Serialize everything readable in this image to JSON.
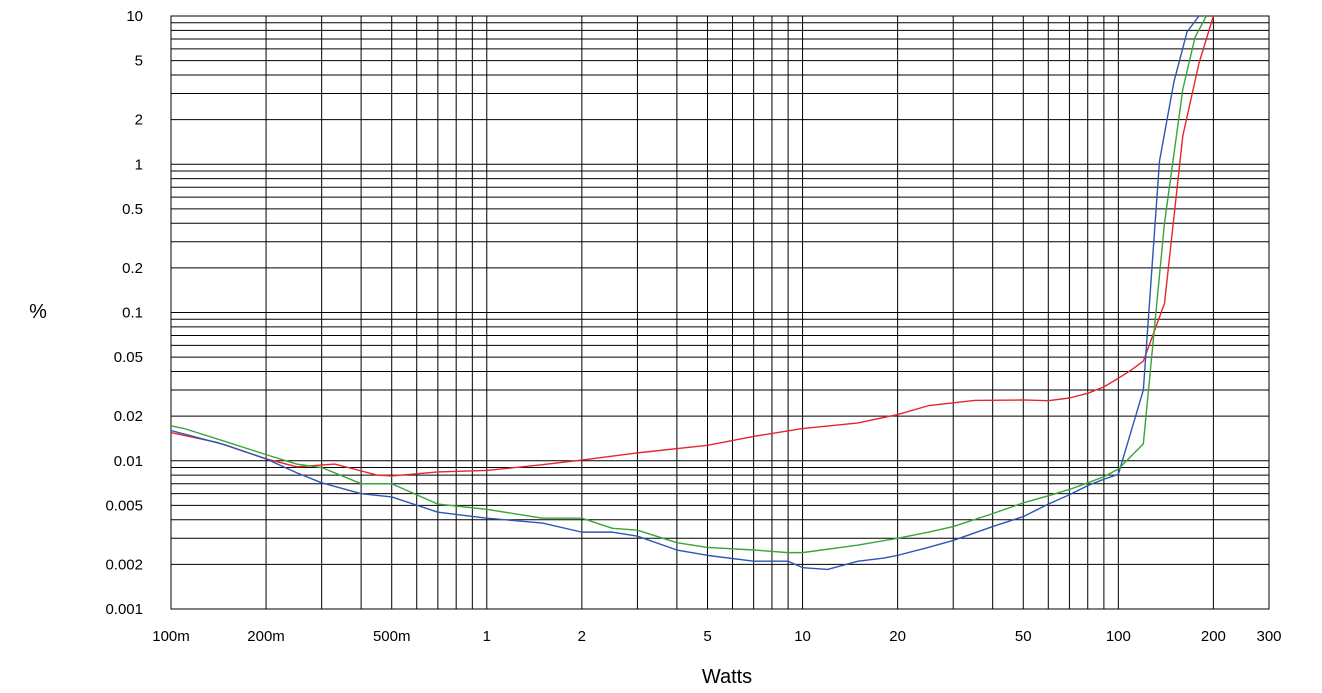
{
  "chart_data": {
    "type": "line",
    "xlabel": "Watts",
    "ylabel": "%",
    "x_scale": "log",
    "y_scale": "log",
    "xlim": [
      0.1,
      300
    ],
    "ylim": [
      0.001,
      10
    ],
    "grid": true,
    "x_ticks": [
      {
        "value": 0.1,
        "label": "100m"
      },
      {
        "value": 0.2,
        "label": "200m"
      },
      {
        "value": 0.5,
        "label": "500m"
      },
      {
        "value": 1,
        "label": "1"
      },
      {
        "value": 2,
        "label": "2"
      },
      {
        "value": 5,
        "label": "5"
      },
      {
        "value": 10,
        "label": "10"
      },
      {
        "value": 20,
        "label": "20"
      },
      {
        "value": 50,
        "label": "50"
      },
      {
        "value": 100,
        "label": "100"
      },
      {
        "value": 200,
        "label": "200"
      },
      {
        "value": 300,
        "label": "300"
      }
    ],
    "y_ticks": [
      {
        "value": 0.001,
        "label": "0.001"
      },
      {
        "value": 0.002,
        "label": "0.002"
      },
      {
        "value": 0.005,
        "label": "0.005"
      },
      {
        "value": 0.01,
        "label": "0.01"
      },
      {
        "value": 0.02,
        "label": "0.02"
      },
      {
        "value": 0.05,
        "label": "0.05"
      },
      {
        "value": 0.1,
        "label": "0.1"
      },
      {
        "value": 0.2,
        "label": "0.2"
      },
      {
        "value": 0.5,
        "label": "0.5"
      },
      {
        "value": 1,
        "label": "1"
      },
      {
        "value": 2,
        "label": "2"
      },
      {
        "value": 5,
        "label": "5"
      },
      {
        "value": 10,
        "label": "10"
      }
    ],
    "series": [
      {
        "color": "#e8252a",
        "x": [
          0.1,
          0.14,
          0.2,
          0.25,
          0.33,
          0.45,
          0.5,
          0.7,
          1,
          1.5,
          2,
          3,
          5,
          7,
          10,
          15,
          20,
          25,
          35,
          50,
          60,
          70,
          80,
          90,
          100,
          110,
          120,
          140,
          160,
          180,
          200
        ],
        "y": [
          0.0155,
          0.0133,
          0.0103,
          0.0091,
          0.0095,
          0.008,
          0.0079,
          0.0084,
          0.0086,
          0.0094,
          0.0101,
          0.0113,
          0.0127,
          0.0146,
          0.0165,
          0.018,
          0.0205,
          0.0235,
          0.0255,
          0.0257,
          0.0254,
          0.0265,
          0.0285,
          0.0315,
          0.036,
          0.041,
          0.047,
          0.115,
          1.55,
          4.8,
          10
        ]
      },
      {
        "color": "#2a57b4",
        "x": [
          0.1,
          0.15,
          0.2,
          0.25,
          0.3,
          0.4,
          0.5,
          0.7,
          1,
          1.5,
          2,
          2.5,
          3,
          4,
          5,
          7,
          9,
          10,
          12,
          15,
          18,
          20,
          25,
          30,
          40,
          50,
          60,
          70,
          80,
          90,
          100,
          120,
          135,
          150,
          165,
          180
        ],
        "y": [
          0.016,
          0.0127,
          0.0103,
          0.0083,
          0.0071,
          0.006,
          0.0057,
          0.0045,
          0.0041,
          0.0038,
          0.0033,
          0.0033,
          0.0031,
          0.0025,
          0.0023,
          0.0021,
          0.0021,
          0.0019,
          0.00185,
          0.0021,
          0.0022,
          0.0023,
          0.0026,
          0.0029,
          0.0036,
          0.0042,
          0.0051,
          0.0059,
          0.0068,
          0.0075,
          0.0081,
          0.03,
          1.05,
          3.6,
          7.8,
          10
        ]
      },
      {
        "color": "#38a538",
        "x": [
          0.1,
          0.11,
          0.15,
          0.2,
          0.25,
          0.3,
          0.4,
          0.5,
          0.7,
          1,
          1.5,
          2,
          2.5,
          3,
          4,
          5,
          7,
          9,
          10,
          15,
          20,
          25,
          30,
          40,
          50,
          60,
          70,
          80,
          90,
          100,
          120,
          140,
          160,
          175,
          190
        ],
        "y": [
          0.0172,
          0.0165,
          0.0134,
          0.011,
          0.0095,
          0.009,
          0.007,
          0.007,
          0.0051,
          0.0047,
          0.0041,
          0.0041,
          0.0035,
          0.0034,
          0.0028,
          0.0026,
          0.0025,
          0.0024,
          0.0024,
          0.0027,
          0.003,
          0.0033,
          0.0036,
          0.0044,
          0.0052,
          0.0058,
          0.0064,
          0.0071,
          0.0078,
          0.0088,
          0.013,
          0.4,
          3.2,
          7.2,
          10
        ]
      }
    ]
  }
}
